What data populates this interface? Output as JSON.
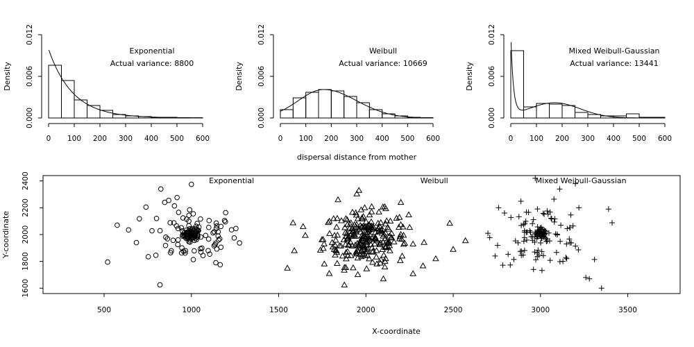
{
  "shared_xlabel": "dispersal distance from mother",
  "chart_data": [
    {
      "type": "histogram",
      "title": "Exponential",
      "annotation": "Actual variance: 8800",
      "ylabel": "Density",
      "xlim": [
        0,
        600
      ],
      "ylim": [
        0,
        0.012
      ],
      "xticks": [
        0,
        100,
        200,
        300,
        400,
        500,
        600
      ],
      "yticks": [
        "0.000",
        "0.006",
        "0.012"
      ],
      "bin_width": 50,
      "bins": [
        0,
        50,
        100,
        150,
        200,
        250,
        300,
        350,
        400,
        450,
        500,
        550
      ],
      "densities": [
        0.0076,
        0.0054,
        0.0026,
        0.0018,
        0.0011,
        0.0005,
        0.0003,
        0.0002,
        0.0001,
        0.0001,
        5e-05,
        3e-05
      ],
      "curve": {
        "kind": "exponential",
        "peak": 0.0099,
        "scale": 93.8
      }
    },
    {
      "type": "histogram",
      "title": "Weibull",
      "annotation": "Actual variance: 10669",
      "ylabel": "Density",
      "xlim": [
        0,
        600
      ],
      "ylim": [
        0,
        0.012
      ],
      "xticks": [
        0,
        100,
        200,
        300,
        400,
        500,
        600
      ],
      "yticks": [
        "0.000",
        "0.006",
        "0.012"
      ],
      "bin_width": 50,
      "bins": [
        0,
        50,
        100,
        150,
        200,
        250,
        300,
        350,
        400,
        450,
        500,
        550
      ],
      "densities": [
        0.0012,
        0.0029,
        0.0037,
        0.0041,
        0.0039,
        0.0031,
        0.0022,
        0.0012,
        0.0006,
        0.0003,
        0.0001,
        5e-05
      ],
      "curve": {
        "kind": "bell",
        "peak": 0.0041,
        "mode": 170,
        "spread_left": 100,
        "spread_right": 130
      }
    },
    {
      "type": "histogram",
      "title": "Mixed Weibull-Gaussian",
      "annotation": "Actual variance: 13441",
      "ylabel": "Density",
      "xlim": [
        0,
        600
      ],
      "ylim": [
        0,
        0.012
      ],
      "xticks": [
        0,
        100,
        200,
        300,
        400,
        500,
        600
      ],
      "yticks": [
        "0.000",
        "0.006",
        "0.012"
      ],
      "bin_width": 50,
      "bins": [
        0,
        50,
        100,
        150,
        200,
        250,
        300,
        350,
        400,
        450,
        500,
        550
      ],
      "densities": [
        0.0097,
        0.0016,
        0.0021,
        0.002,
        0.0018,
        0.0008,
        0.0005,
        0.0003,
        0.0003,
        0.0006,
        0.0001,
        0.0001
      ],
      "curve": {
        "kind": "mixed",
        "spike_peak": 0.0115,
        "spike_scale": 10,
        "tail_peak": 0.0022,
        "tail_mode": 170,
        "tail_spread": 100
      }
    },
    {
      "type": "scatter",
      "xlabel": "X-coordinate",
      "ylabel": "Y-coordinate",
      "xlim": [
        150,
        3800
      ],
      "ylim": [
        1560,
        2440
      ],
      "xticks": [
        500,
        1000,
        1500,
        2000,
        2500,
        3000,
        3500
      ],
      "yticks": [
        1600,
        1800,
        2000,
        2200,
        2400
      ],
      "series": [
        {
          "name": "Exponential",
          "marker": "circle",
          "center": [
            1000,
            2000
          ],
          "count": 150,
          "core_fraction": 0.45,
          "core_sd": 25,
          "outer_sd": 130,
          "points_extra": [
            [
              520,
              1795
            ],
            [
              575,
              2070
            ],
            [
              640,
              2035
            ],
            [
              685,
              1940
            ],
            [
              820,
              1625
            ],
            [
              825,
              2340
            ],
            [
              1000,
              2375
            ],
            [
              1140,
              1790
            ],
            [
              1165,
              1775
            ],
            [
              1255,
              2045
            ],
            [
              740,
              2205
            ],
            [
              870,
              2255
            ]
          ]
        },
        {
          "name": "Weibull",
          "marker": "triangle",
          "center": [
            2000,
            1970
          ],
          "count": 260,
          "core_fraction": 0,
          "core_sd": 0,
          "outer_sd": 120,
          "points_extra": [
            [
              1550,
              1750
            ],
            [
              1590,
              1880
            ],
            [
              1640,
              2060
            ],
            [
              1790,
              1710
            ],
            [
              1840,
              2260
            ],
            [
              1960,
              2330
            ],
            [
              2100,
              1670
            ],
            [
              2200,
              2240
            ],
            [
              2400,
              1820
            ],
            [
              2480,
              2085
            ],
            [
              2570,
              1955
            ],
            [
              2500,
              1890
            ]
          ]
        },
        {
          "name": "Mixed Weibull-Gaussian",
          "marker": "plus",
          "center": [
            3000,
            2000
          ],
          "count": 150,
          "core_fraction": 0.4,
          "core_sd": 20,
          "outer_sd": 130,
          "points_extra": [
            [
              2740,
              1840
            ],
            [
              2760,
              2200
            ],
            [
              2970,
              2420
            ],
            [
              3110,
              2340
            ],
            [
              3200,
              2380
            ],
            [
              3260,
              1680
            ],
            [
              3280,
              1670
            ],
            [
              3350,
              1600
            ],
            [
              3390,
              2190
            ],
            [
              2960,
              1740
            ],
            [
              3220,
              2200
            ],
            [
              3150,
              1820
            ]
          ]
        }
      ],
      "annotations": [
        "Exponential",
        "Weibull",
        "Mixed Weibull-Gaussian"
      ]
    }
  ]
}
